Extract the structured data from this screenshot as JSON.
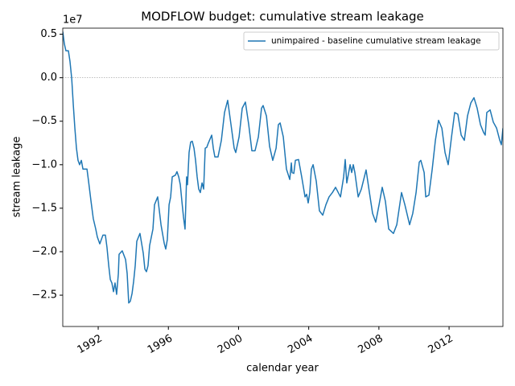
{
  "chart_data": {
    "type": "line",
    "title": "MODFLOW budget: cumulative stream leakage",
    "xlabel": "calendar year",
    "ylabel": "stream leakage",
    "y_offset_label": "1e7",
    "xlim": [
      1989.98,
      2015.07
    ],
    "ylim": [
      -2.86,
      0.57
    ],
    "xticks": [
      1992,
      1996,
      2000,
      2004,
      2008,
      2012
    ],
    "yticks": [
      {
        "value": 0.5,
        "label": "0.5"
      },
      {
        "value": 0,
        "label": "0.0"
      },
      {
        "value": -0.5,
        "label": "−0.5"
      },
      {
        "value": -1,
        "label": "−1.0"
      },
      {
        "value": -1.5,
        "label": "−1.5"
      },
      {
        "value": -2,
        "label": "−2.0"
      },
      {
        "value": -2.5,
        "label": "−2.5"
      }
    ],
    "hlines": [
      0
    ],
    "legend": "upper right",
    "x": [
      1989.98,
      1990.07,
      1990.16,
      1990.3,
      1990.39,
      1990.49,
      1990.58,
      1990.67,
      1990.76,
      1990.85,
      1990.94,
      1991.04,
      1991.13,
      1991.36,
      1991.45,
      1991.59,
      1991.72,
      1991.86,
      1991.95,
      1992.09,
      1992.27,
      1992.41,
      1992.5,
      1992.6,
      1992.69,
      1992.78,
      1992.87,
      1992.96,
      1993.05,
      1993.15,
      1993.19,
      1993.37,
      1993.56,
      1993.65,
      1993.74,
      1993.83,
      1993.93,
      1994.02,
      1994.11,
      1994.2,
      1994.38,
      1994.57,
      1994.66,
      1994.75,
      1994.84,
      1994.93,
      1995.12,
      1995.21,
      1995.39,
      1995.58,
      1995.76,
      1995.85,
      1995.94,
      1996.04,
      1996.13,
      1996.22,
      1996.4,
      1996.49,
      1996.59,
      1996.68,
      1996.77,
      1996.86,
      1996.95,
      1997.04,
      1997.09,
      1997.18,
      1997.27,
      1997.36,
      1997.46,
      1997.55,
      1997.64,
      1997.73,
      1997.82,
      1997.92,
      1998.01,
      1998.1,
      1998.19,
      1998.28,
      1998.47,
      1998.56,
      1998.65,
      1998.83,
      1999.02,
      1999.2,
      1999.38,
      1999.57,
      1999.75,
      1999.84,
      2000.03,
      2000.21,
      2000.39,
      2000.58,
      2000.76,
      2000.94,
      2001.13,
      2001.31,
      2001.4,
      2001.59,
      2001.77,
      2001.95,
      2002.14,
      2002.27,
      2002.37,
      2002.55,
      2002.73,
      2002.92,
      2003.01,
      2003.05,
      2003.15,
      2003.24,
      2003.42,
      2003.6,
      2003.79,
      2003.88,
      2003.97,
      2004.06,
      2004.15,
      2004.25,
      2004.43,
      2004.61,
      2004.8,
      2004.98,
      2005.16,
      2005.35,
      2005.53,
      2005.81,
      2005.99,
      2006.08,
      2006.17,
      2006.36,
      2006.45,
      2006.54,
      2006.63,
      2006.82,
      2007.0,
      2007.27,
      2007.46,
      2007.64,
      2007.82,
      2008.01,
      2008.19,
      2008.37,
      2008.56,
      2008.83,
      2009.02,
      2009.29,
      2009.48,
      2009.75,
      2009.93,
      2010.12,
      2010.3,
      2010.39,
      2010.58,
      2010.67,
      2010.85,
      2011.04,
      2011.22,
      2011.4,
      2011.59,
      2011.77,
      2011.95,
      2012.14,
      2012.32,
      2012.5,
      2012.69,
      2012.87,
      2013.05,
      2013.24,
      2013.42,
      2013.6,
      2013.79,
      2013.97,
      2014.06,
      2014.15,
      2014.34,
      2014.52,
      2014.71,
      2014.89,
      2014.98,
      2015.07
    ],
    "series": [
      {
        "name": "unimpaired - baseline cumulative stream leakage",
        "color": "#1f77b4",
        "values": [
          0.53,
          0.39,
          0.31,
          0.31,
          0.19,
          -0.01,
          -0.31,
          -0.58,
          -0.81,
          -0.95,
          -1.0,
          -0.95,
          -1.05,
          -1.05,
          -1.19,
          -1.42,
          -1.62,
          -1.74,
          -1.83,
          -1.91,
          -1.81,
          -1.81,
          -1.95,
          -2.16,
          -2.32,
          -2.36,
          -2.46,
          -2.36,
          -2.49,
          -2.25,
          -2.03,
          -1.99,
          -2.09,
          -2.25,
          -2.59,
          -2.57,
          -2.48,
          -2.34,
          -2.16,
          -1.88,
          -1.79,
          -2.02,
          -2.2,
          -2.23,
          -2.16,
          -1.93,
          -1.74,
          -1.46,
          -1.37,
          -1.69,
          -1.9,
          -1.97,
          -1.86,
          -1.46,
          -1.37,
          -1.14,
          -1.12,
          -1.08,
          -1.14,
          -1.23,
          -1.42,
          -1.6,
          -1.74,
          -1.14,
          -1.23,
          -0.86,
          -0.74,
          -0.73,
          -0.81,
          -0.95,
          -1.14,
          -1.28,
          -1.32,
          -1.21,
          -1.28,
          -0.81,
          -0.8,
          -0.75,
          -0.66,
          -0.81,
          -0.91,
          -0.91,
          -0.72,
          -0.4,
          -0.26,
          -0.54,
          -0.81,
          -0.86,
          -0.68,
          -0.35,
          -0.28,
          -0.54,
          -0.84,
          -0.84,
          -0.68,
          -0.35,
          -0.32,
          -0.44,
          -0.79,
          -0.95,
          -0.81,
          -0.54,
          -0.52,
          -0.68,
          -1.05,
          -1.17,
          -0.98,
          -1.09,
          -1.1,
          -0.95,
          -0.94,
          -1.14,
          -1.37,
          -1.34,
          -1.44,
          -1.32,
          -1.05,
          -1.0,
          -1.19,
          -1.53,
          -1.58,
          -1.46,
          -1.37,
          -1.32,
          -1.26,
          -1.37,
          -1.14,
          -0.94,
          -1.21,
          -1.0,
          -1.09,
          -1.0,
          -1.09,
          -1.37,
          -1.28,
          -1.06,
          -1.32,
          -1.56,
          -1.66,
          -1.46,
          -1.26,
          -1.42,
          -1.74,
          -1.79,
          -1.69,
          -1.32,
          -1.46,
          -1.69,
          -1.56,
          -1.32,
          -0.97,
          -0.95,
          -1.09,
          -1.37,
          -1.35,
          -1.05,
          -0.72,
          -0.49,
          -0.58,
          -0.86,
          -1.0,
          -0.68,
          -0.4,
          -0.42,
          -0.66,
          -0.72,
          -0.44,
          -0.29,
          -0.23,
          -0.35,
          -0.54,
          -0.63,
          -0.66,
          -0.4,
          -0.37,
          -0.51,
          -0.58,
          -0.72,
          -0.77,
          -0.58
        ]
      }
    ]
  }
}
